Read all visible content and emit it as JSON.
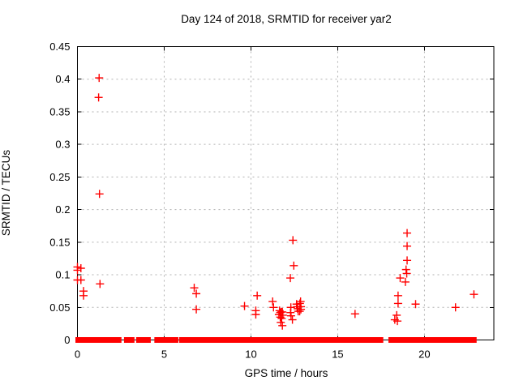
{
  "chart_data": {
    "type": "scatter",
    "title": "Day 124 of 2018, SRMTID for receiver yar2",
    "xlabel": "GPS time / hours",
    "ylabel": "SRMTID / TECUs",
    "xlim": [
      0,
      24
    ],
    "ylim": [
      0,
      0.45
    ],
    "xticks": [
      0,
      5,
      10,
      15,
      20
    ],
    "xtick_labels": [
      "0",
      "5",
      "10",
      "15",
      "20"
    ],
    "yticks": [
      0,
      0.05,
      0.1,
      0.15,
      0.2,
      0.25,
      0.3,
      0.35,
      0.4,
      0.45
    ],
    "ytick_labels": [
      "0",
      "0.05",
      "0.1",
      "0.15",
      "0.2",
      "0.25",
      "0.3",
      "0.35",
      "0.4",
      "0.45"
    ],
    "grid": true,
    "grid_style": "dotted",
    "grid_color": "#b0b0b0",
    "border_color": "#000000",
    "legend": false,
    "marker": {
      "shape": "plus",
      "color": "#ff0000",
      "half_size": 5
    },
    "series": [
      {
        "name": "SRMTID",
        "points": [
          [
            0.0,
            0.112
          ],
          [
            0.0,
            0.107
          ],
          [
            0.2,
            0.11
          ],
          [
            0.0,
            0.092
          ],
          [
            0.2,
            0.092
          ],
          [
            0.35,
            0.075
          ],
          [
            0.35,
            0.068
          ],
          [
            1.25,
            0.402
          ],
          [
            1.22,
            0.372
          ],
          [
            1.27,
            0.224
          ],
          [
            1.3,
            0.086
          ],
          [
            6.73,
            0.08
          ],
          [
            6.85,
            0.071
          ],
          [
            6.85,
            0.047
          ],
          [
            9.63,
            0.052
          ],
          [
            10.36,
            0.068
          ],
          [
            10.28,
            0.045
          ],
          [
            10.28,
            0.039
          ],
          [
            11.25,
            0.059
          ],
          [
            11.3,
            0.05
          ],
          [
            11.61,
            0.039
          ],
          [
            11.65,
            0.045
          ],
          [
            11.69,
            0.042
          ],
          [
            11.74,
            0.043
          ],
          [
            11.81,
            0.043
          ],
          [
            11.84,
            0.038
          ],
          [
            11.69,
            0.035
          ],
          [
            11.77,
            0.033
          ],
          [
            11.72,
            0.027
          ],
          [
            11.81,
            0.022
          ],
          [
            12.27,
            0.095
          ],
          [
            12.42,
            0.153
          ],
          [
            12.47,
            0.114
          ],
          [
            12.3,
            0.05
          ],
          [
            12.28,
            0.042
          ],
          [
            12.31,
            0.037
          ],
          [
            12.39,
            0.031
          ],
          [
            12.63,
            0.055
          ],
          [
            12.66,
            0.051
          ],
          [
            12.69,
            0.048
          ],
          [
            12.72,
            0.044
          ],
          [
            12.86,
            0.059
          ],
          [
            12.82,
            0.056
          ],
          [
            12.88,
            0.051
          ],
          [
            12.88,
            0.047
          ],
          [
            12.81,
            0.044
          ],
          [
            16.0,
            0.04
          ],
          [
            18.29,
            0.031
          ],
          [
            18.4,
            0.038
          ],
          [
            18.44,
            0.029
          ],
          [
            18.48,
            0.068
          ],
          [
            18.48,
            0.056
          ],
          [
            18.6,
            0.095
          ],
          [
            18.9,
            0.089
          ],
          [
            18.94,
            0.108
          ],
          [
            18.98,
            0.102
          ],
          [
            19.0,
            0.164
          ],
          [
            19.0,
            0.144
          ],
          [
            19.0,
            0.122
          ],
          [
            19.49,
            0.055
          ],
          [
            21.79,
            0.05
          ],
          [
            22.85,
            0.07
          ]
        ]
      }
    ],
    "zero_band_segments": [
      [
        0.0,
        2.42
      ],
      [
        2.8,
        3.17
      ],
      [
        3.5,
        4.11
      ],
      [
        4.55,
        4.62
      ],
      [
        4.81,
        5.14
      ],
      [
        5.28,
        5.7
      ],
      [
        5.98,
        8.32
      ],
      [
        8.51,
        11.83
      ],
      [
        11.92,
        14.16
      ],
      [
        14.28,
        16.69
      ],
      [
        16.89,
        16.99
      ],
      [
        17.11,
        17.2
      ],
      [
        17.28,
        17.36
      ],
      [
        17.4,
        17.51
      ],
      [
        18.04,
        18.35
      ],
      [
        18.48,
        18.68
      ],
      [
        18.74,
        18.98
      ],
      [
        19.1,
        20.32
      ],
      [
        20.5,
        21.67
      ],
      [
        21.83,
        22.89
      ]
    ]
  }
}
